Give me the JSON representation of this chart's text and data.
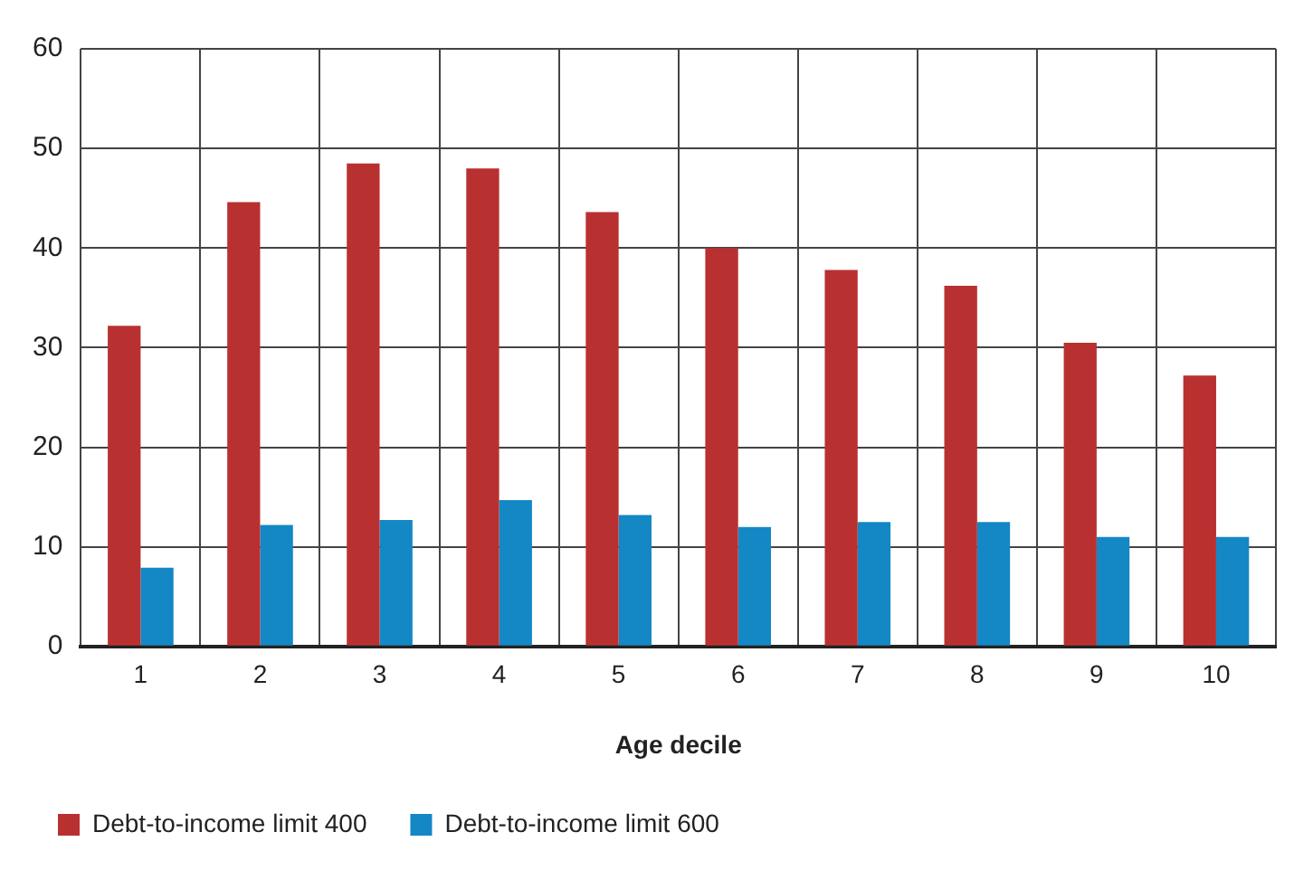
{
  "chart_data": {
    "type": "bar",
    "xlabel": "Age decile",
    "categories": [
      "1",
      "2",
      "3",
      "4",
      "5",
      "6",
      "7",
      "8",
      "9",
      "10"
    ],
    "series": [
      {
        "name": "Debt-to-income limit 400",
        "color": "#b83130",
        "values": [
          32.2,
          44.6,
          48.5,
          48.0,
          43.6,
          40.0,
          37.8,
          36.2,
          30.5,
          27.2
        ]
      },
      {
        "name": "Debt-to-income limit 600",
        "color": "#1487c5",
        "values": [
          7.9,
          12.2,
          12.7,
          14.7,
          13.2,
          12.0,
          12.5,
          12.5,
          11.0,
          11.0
        ]
      }
    ],
    "ylim": [
      0,
      60
    ],
    "yticks": [
      0,
      10,
      20,
      30,
      40,
      50,
      60
    ],
    "grid": true,
    "legend": "bottom"
  }
}
